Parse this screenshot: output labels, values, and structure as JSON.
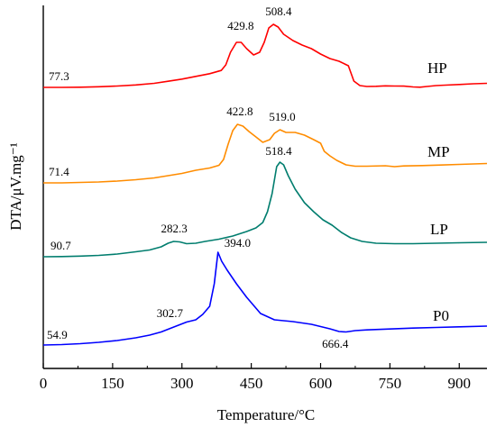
{
  "chart_data": {
    "type": "line",
    "title": "",
    "xlabel": "Temperature/°C",
    "ylabel": "DTA/μV.mg⁻¹",
    "xlim": [
      0,
      960
    ],
    "x_ticks": [
      "0",
      "150",
      "300",
      "450",
      "600",
      "750",
      "900"
    ],
    "y_ticks_shown": false,
    "grid": false,
    "series": [
      {
        "name": "HP",
        "color": "#ff0000",
        "points": [
          [
            0,
            97
          ],
          [
            40,
            97
          ],
          [
            80,
            96.8
          ],
          [
            120,
            96.3
          ],
          [
            160,
            95.5
          ],
          [
            200,
            94.3
          ],
          [
            240,
            92.5
          ],
          [
            270,
            90.2
          ],
          [
            300,
            87.8
          ],
          [
            330,
            84.8
          ],
          [
            360,
            81.8
          ],
          [
            385,
            78.2
          ],
          [
            395,
            72
          ],
          [
            405,
            58
          ],
          [
            418,
            47
          ],
          [
            428,
            47
          ],
          [
            440,
            54
          ],
          [
            455,
            61
          ],
          [
            468,
            58
          ],
          [
            478,
            47
          ],
          [
            488,
            31
          ],
          [
            498,
            27
          ],
          [
            508,
            30
          ],
          [
            520,
            38
          ],
          [
            540,
            45
          ],
          [
            560,
            50
          ],
          [
            580,
            54
          ],
          [
            600,
            60
          ],
          [
            620,
            65
          ],
          [
            640,
            68
          ],
          [
            660,
            73
          ],
          [
            672,
            90
          ],
          [
            685,
            95
          ],
          [
            700,
            96
          ],
          [
            720,
            95.8
          ],
          [
            740,
            95.3
          ],
          [
            760,
            95.5
          ],
          [
            780,
            95.6
          ],
          [
            800,
            96.5
          ],
          [
            815,
            96.8
          ],
          [
            830,
            96
          ],
          [
            850,
            95
          ],
          [
            870,
            94.5
          ],
          [
            900,
            93.8
          ],
          [
            930,
            93
          ],
          [
            960,
            92.5
          ]
        ],
        "annotations": [
          [
            "77.3",
            0,
            97
          ],
          [
            "429.8",
            418,
            47
          ],
          [
            "508.4",
            496,
            27
          ]
        ]
      },
      {
        "name": "MP",
        "color": "#ff8c00",
        "points": [
          [
            0,
            203
          ],
          [
            40,
            203
          ],
          [
            80,
            202.5
          ],
          [
            120,
            202
          ],
          [
            160,
            201
          ],
          [
            200,
            199.5
          ],
          [
            240,
            197.5
          ],
          [
            270,
            195
          ],
          [
            300,
            192.5
          ],
          [
            330,
            189
          ],
          [
            360,
            186.5
          ],
          [
            380,
            183.5
          ],
          [
            390,
            177
          ],
          [
            400,
            160
          ],
          [
            410,
            145
          ],
          [
            420,
            138
          ],
          [
            432,
            140
          ],
          [
            445,
            146
          ],
          [
            460,
            152
          ],
          [
            475,
            158
          ],
          [
            490,
            155
          ],
          [
            500,
            148
          ],
          [
            512,
            144
          ],
          [
            525,
            147
          ],
          [
            545,
            147
          ],
          [
            565,
            150
          ],
          [
            585,
            155
          ],
          [
            600,
            159
          ],
          [
            608,
            168
          ],
          [
            620,
            173
          ],
          [
            635,
            178
          ],
          [
            655,
            183
          ],
          [
            675,
            184.5
          ],
          [
            700,
            184.5
          ],
          [
            740,
            184
          ],
          [
            760,
            185
          ],
          [
            780,
            184.2
          ],
          [
            820,
            183.8
          ],
          [
            860,
            183.2
          ],
          [
            900,
            182.5
          ],
          [
            930,
            182
          ],
          [
            960,
            181.5
          ]
        ],
        "annotations": [
          [
            "71.4",
            0,
            203
          ],
          [
            "422.8",
            420,
            138
          ],
          [
            "519.0",
            512,
            144
          ]
        ]
      },
      {
        "name": "LP",
        "color": "#007d6e",
        "points": [
          [
            0,
            285
          ],
          [
            40,
            284.8
          ],
          [
            80,
            284.3
          ],
          [
            120,
            283.5
          ],
          [
            160,
            282
          ],
          [
            200,
            279.5
          ],
          [
            230,
            277.5
          ],
          [
            255,
            274
          ],
          [
            270,
            270
          ],
          [
            282,
            268
          ],
          [
            295,
            268.5
          ],
          [
            310,
            270.5
          ],
          [
            330,
            270
          ],
          [
            350,
            268
          ],
          [
            380,
            265.5
          ],
          [
            410,
            262
          ],
          [
            440,
            257
          ],
          [
            460,
            253
          ],
          [
            475,
            247
          ],
          [
            485,
            235
          ],
          [
            495,
            215
          ],
          [
            505,
            185
          ],
          [
            512,
            180
          ],
          [
            520,
            183
          ],
          [
            530,
            195
          ],
          [
            545,
            210
          ],
          [
            565,
            225
          ],
          [
            585,
            235
          ],
          [
            605,
            244
          ],
          [
            625,
            250
          ],
          [
            645,
            258
          ],
          [
            665,
            264
          ],
          [
            690,
            268
          ],
          [
            720,
            270
          ],
          [
            760,
            270.5
          ],
          [
            800,
            270.5
          ],
          [
            850,
            270
          ],
          [
            900,
            269.5
          ],
          [
            960,
            269
          ]
        ],
        "annotations": [
          [
            "90.7",
            0,
            285
          ],
          [
            "282.3",
            282,
            268
          ],
          [
            "518.4",
            512,
            180
          ]
        ]
      },
      {
        "name": "P0",
        "color": "#0000ff",
        "points": [
          [
            0,
            383
          ],
          [
            40,
            382.5
          ],
          [
            80,
            381.5
          ],
          [
            120,
            380
          ],
          [
            160,
            378
          ],
          [
            200,
            375
          ],
          [
            230,
            372
          ],
          [
            255,
            368.5
          ],
          [
            275,
            364.5
          ],
          [
            295,
            360.5
          ],
          [
            310,
            357.5
          ],
          [
            330,
            355
          ],
          [
            345,
            349
          ],
          [
            360,
            340
          ],
          [
            370,
            315
          ],
          [
            378,
            280
          ],
          [
            386,
            290
          ],
          [
            398,
            300
          ],
          [
            418,
            315
          ],
          [
            440,
            330
          ],
          [
            470,
            348
          ],
          [
            500,
            355
          ],
          [
            540,
            357
          ],
          [
            580,
            360
          ],
          [
            620,
            365
          ],
          [
            640,
            368
          ],
          [
            655,
            368.5
          ],
          [
            675,
            367
          ],
          [
            700,
            366.2
          ],
          [
            750,
            365.2
          ],
          [
            800,
            364.2
          ],
          [
            850,
            363.5
          ],
          [
            900,
            362.8
          ],
          [
            960,
            362
          ]
        ],
        "annotations": [
          [
            "54.9",
            0,
            383
          ],
          [
            "302.7",
            300,
            358
          ],
          [
            "394.0",
            380,
            280
          ],
          [
            "666.4",
            650,
            368
          ]
        ]
      }
    ]
  }
}
